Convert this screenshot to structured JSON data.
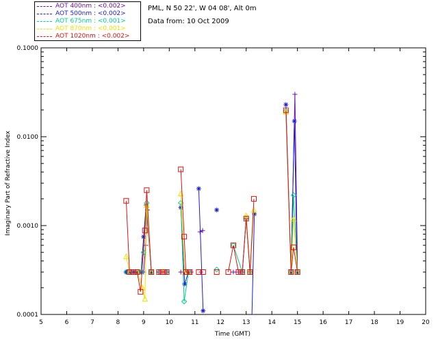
{
  "header": {
    "site": "PML, N 50 22', W 04 08', Alt 0m",
    "date": "Data from: 10 Oct 2009"
  },
  "legend": [
    {
      "text": "AOT  400nm : <0.002>",
      "color": "#6a0dad"
    },
    {
      "text": "AOT  500nm : <0.002>",
      "color": "#1a1ad8"
    },
    {
      "text": "AOT  675nm : <0.001>",
      "color": "#00d08a"
    },
    {
      "text": "AOT  870nm : <0.001>",
      "color": "#f0e000"
    },
    {
      "text": "AOT 1020nm : <0.002>",
      "color": "#e01010"
    }
  ],
  "chart_data": {
    "type": "line",
    "xlabel": "Time (GMT)",
    "ylabel": "Imaginary Part of Refractive Index",
    "xlim": [
      5,
      20
    ],
    "ylim": [
      0.0001,
      0.1
    ],
    "yscale": "log",
    "x_ticks": [
      "5",
      "6",
      "7",
      "8",
      "9",
      "10",
      "11",
      "12",
      "13",
      "14",
      "15",
      "16",
      "17",
      "18",
      "19",
      "20"
    ],
    "y_ticks": [
      "0.0001",
      "0.0010",
      "0.0100",
      "0.1000"
    ],
    "series": [
      {
        "name": "AOT  400nm : <0.002>",
        "color": "#6a0dad",
        "marker": "plus",
        "segments": [
          [
            [
              8.32,
              0.0003
            ],
            [
              8.45,
              0.0003
            ],
            [
              8.6,
              0.0003
            ],
            [
              8.75,
              0.0003
            ],
            [
              8.9,
              0.0003
            ],
            [
              9.0,
              0.0003
            ],
            [
              9.08,
              0.0006
            ],
            [
              9.15,
              0.0015
            ],
            [
              9.3,
              0.0003
            ]
          ],
          [
            [
              9.6,
              0.0003
            ],
            [
              9.75,
              0.0003
            ],
            [
              9.9,
              0.0003
            ]
          ],
          [
            [
              10.45,
              0.0003
            ],
            [
              10.6,
              0.0003
            ],
            [
              10.72,
              0.0003
            ],
            [
              10.85,
              0.0003
            ]
          ],
          [
            [
              11.2,
              0.00085
            ],
            [
              11.3,
              0.00088
            ]
          ],
          [
            [
              12.5,
              0.0003
            ],
            [
              12.7,
              0.0003
            ],
            [
              12.85,
              0.0003
            ],
            [
              13.0,
              0.0012
            ],
            [
              13.15,
              0.0003
            ]
          ],
          [
            [
              14.75,
              0.0003
            ],
            [
              14.9,
              0.03
            ],
            [
              15.0,
              0.0003
            ]
          ]
        ]
      },
      {
        "name": "AOT  500nm : <0.002>",
        "color": "#1a1ad8",
        "marker": "asterisk",
        "segments": [
          [
            [
              8.32,
              0.0003
            ],
            [
              8.45,
              0.0003
            ],
            [
              8.6,
              0.0003
            ],
            [
              8.75,
              0.0003
            ],
            [
              8.9,
              0.0003
            ],
            [
              9.0,
              0.00075
            ],
            [
              9.1,
              0.0017
            ],
            [
              9.3,
              0.0003
            ]
          ],
          [
            [
              10.45,
              0.0016
            ],
            [
              10.6,
              0.00022
            ],
            [
              10.75,
              0.0003
            ]
          ],
          [
            [
              11.15,
              0.0026
            ],
            [
              11.32,
              0.00011
            ]
          ],
          [
            [
              11.85,
              0.0015
            ]
          ],
          [
            [
              13.22,
              9e-05
            ],
            [
              13.32,
              0.00135
            ]
          ],
          [
            [
              14.55,
              0.023
            ],
            [
              14.75,
              0.0003
            ],
            [
              14.88,
              0.015
            ],
            [
              14.99,
              0.0003
            ]
          ]
        ]
      },
      {
        "name": "AOT  675nm : <0.001>",
        "color": "#00d08a",
        "marker": "diamond",
        "segments": [
          [
            [
              8.32,
              0.0003
            ],
            [
              8.5,
              0.0003
            ],
            [
              8.75,
              0.0003
            ],
            [
              8.9,
              0.0003
            ],
            [
              9.0,
              0.0005
            ],
            [
              9.12,
              0.0018
            ],
            [
              9.3,
              0.0003
            ]
          ],
          [
            [
              9.6,
              0.0003
            ],
            [
              9.9,
              0.0003
            ]
          ],
          [
            [
              10.45,
              0.0018
            ],
            [
              10.58,
              0.00014
            ],
            [
              10.75,
              0.0003
            ]
          ],
          [
            [
              11.85,
              0.00032
            ]
          ],
          [
            [
              12.5,
              0.0006
            ],
            [
              12.85,
              0.0003
            ],
            [
              13.0,
              0.0012
            ],
            [
              13.15,
              0.0003
            ]
          ],
          [
            [
              14.55,
              0.0195
            ],
            [
              14.75,
              0.0003
            ],
            [
              14.85,
              0.0022
            ],
            [
              15.0,
              0.0003
            ]
          ]
        ]
      },
      {
        "name": "AOT  870nm : <0.001>",
        "color": "#f0e000",
        "marker": "triangle",
        "segments": [
          [
            [
              8.32,
              0.00045
            ],
            [
              8.45,
              0.0003
            ],
            [
              8.75,
              0.0003
            ],
            [
              8.95,
              0.0002
            ],
            [
              9.05,
              0.00015
            ],
            [
              9.12,
              0.0017
            ],
            [
              9.3,
              0.0003
            ]
          ],
          [
            [
              9.75,
              0.0003
            ]
          ],
          [
            [
              10.45,
              0.0023
            ],
            [
              10.6,
              0.0003
            ],
            [
              10.75,
              0.0003
            ]
          ],
          [
            [
              13.0,
              0.0013
            ],
            [
              13.15,
              0.0003
            ],
            [
              13.3,
              0.0015
            ]
          ],
          [
            [
              14.55,
              0.019
            ],
            [
              14.75,
              0.0003
            ],
            [
              14.85,
              0.0012
            ],
            [
              15.0,
              0.0003
            ]
          ]
        ]
      },
      {
        "name": "AOT 1020nm : <0.002>",
        "color": "#e01010",
        "marker": "square",
        "segments": [
          [
            [
              8.32,
              0.0019
            ],
            [
              8.45,
              0.0003
            ],
            [
              8.6,
              0.0003
            ],
            [
              8.75,
              0.0003
            ],
            [
              8.88,
              0.00018
            ],
            [
              9.05,
              0.00088
            ],
            [
              9.12,
              0.0025
            ],
            [
              9.3,
              0.0003
            ]
          ],
          [
            [
              9.6,
              0.0003
            ],
            [
              9.75,
              0.0003
            ],
            [
              9.9,
              0.0003
            ]
          ],
          [
            [
              10.45,
              0.0043
            ],
            [
              10.58,
              0.00075
            ],
            [
              10.65,
              0.0003
            ],
            [
              10.8,
              0.0003
            ]
          ],
          [
            [
              11.15,
              0.0003
            ],
            [
              11.32,
              0.0003
            ]
          ],
          [
            [
              11.85,
              0.0003
            ]
          ],
          [
            [
              12.3,
              0.0003
            ],
            [
              12.5,
              0.0006
            ],
            [
              12.7,
              0.0003
            ],
            [
              12.85,
              0.0003
            ],
            [
              13.0,
              0.0012
            ],
            [
              13.15,
              0.0003
            ],
            [
              13.3,
              0.002
            ]
          ],
          [
            [
              14.55,
              0.0198
            ],
            [
              14.75,
              0.0003
            ],
            [
              14.85,
              0.00057
            ],
            [
              15.0,
              0.0003
            ]
          ]
        ]
      }
    ]
  }
}
